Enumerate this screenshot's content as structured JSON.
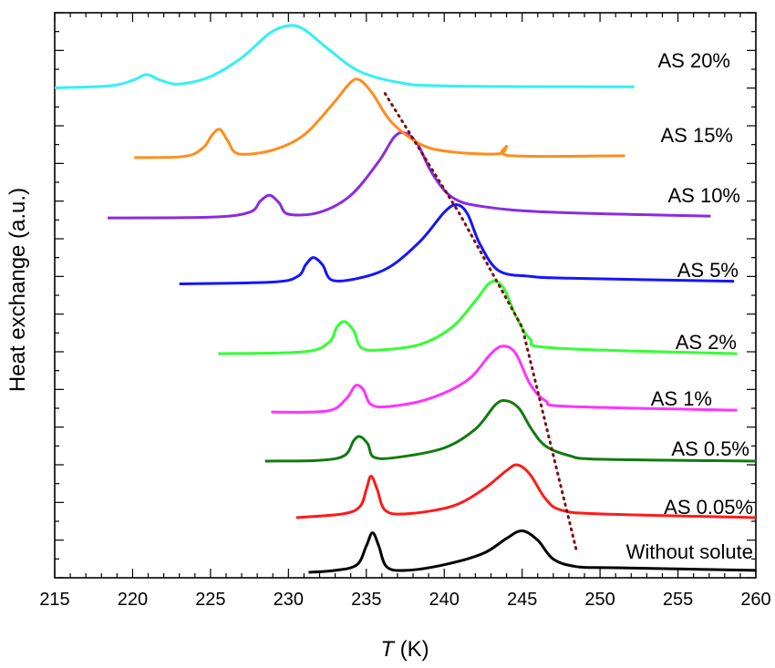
{
  "chart_data": {
    "type": "line",
    "xlabel_symbol": "T",
    "xlabel_unit": " (K)",
    "ylabel": "Heat exchange (a.u.)",
    "xlim": [
      215,
      260
    ],
    "x_ticks": [
      "215",
      "220",
      "225",
      "230",
      "235",
      "240",
      "245",
      "250",
      "255",
      "260"
    ],
    "grid": false,
    "y_ticks_labeled": false,
    "trend_line": {
      "style": "dotted",
      "color": "#7a1010",
      "points": [
        [
          236.2,
          12.7
        ],
        [
          241.0,
          9.5
        ],
        [
          245.0,
          6.5
        ],
        [
          248.5,
          0.55
        ]
      ]
    },
    "series": [
      {
        "name": "Without solute",
        "color": "#000000",
        "x_start": 231.3,
        "x_end": 260,
        "baseline": 0.0,
        "points": [
          [
            231.3,
            0.0
          ],
          [
            233.0,
            0.05
          ],
          [
            234.4,
            0.2
          ],
          [
            235.0,
            0.7
          ],
          [
            235.4,
            1.05
          ],
          [
            235.8,
            0.7
          ],
          [
            236.3,
            0.15
          ],
          [
            237.5,
            0.05
          ],
          [
            240.0,
            0.2
          ],
          [
            242.5,
            0.5
          ],
          [
            244.0,
            0.9
          ],
          [
            245.0,
            1.1
          ],
          [
            246.0,
            0.85
          ],
          [
            247.0,
            0.35
          ],
          [
            248.5,
            0.15
          ],
          [
            251.0,
            0.12
          ],
          [
            260.0,
            0.05
          ]
        ]
      },
      {
        "name": "AS 0.05%",
        "color": "#ff1a1a",
        "x_start": 230.5,
        "x_end": 260,
        "baseline": 1.45,
        "points": [
          [
            230.5,
            1.45
          ],
          [
            233.5,
            1.55
          ],
          [
            234.6,
            1.75
          ],
          [
            235.0,
            2.2
          ],
          [
            235.3,
            2.55
          ],
          [
            235.7,
            2.2
          ],
          [
            236.2,
            1.65
          ],
          [
            237.5,
            1.55
          ],
          [
            240.5,
            1.75
          ],
          [
            242.5,
            2.2
          ],
          [
            244.0,
            2.7
          ],
          [
            244.7,
            2.85
          ],
          [
            245.5,
            2.6
          ],
          [
            246.5,
            1.95
          ],
          [
            247.5,
            1.65
          ],
          [
            250.0,
            1.55
          ],
          [
            260.0,
            1.45
          ]
        ]
      },
      {
        "name": "AS 0.5%",
        "color": "#127a12",
        "x_start": 228.5,
        "x_end": 260,
        "baseline": 2.95,
        "points": [
          [
            228.5,
            2.95
          ],
          [
            232.0,
            2.97
          ],
          [
            233.6,
            3.1
          ],
          [
            234.2,
            3.5
          ],
          [
            234.6,
            3.6
          ],
          [
            235.1,
            3.4
          ],
          [
            235.5,
            3.05
          ],
          [
            237.0,
            3.05
          ],
          [
            240.0,
            3.3
          ],
          [
            242.0,
            3.8
          ],
          [
            243.3,
            4.45
          ],
          [
            244.0,
            4.55
          ],
          [
            244.8,
            4.35
          ],
          [
            245.6,
            3.8
          ],
          [
            246.5,
            3.35
          ],
          [
            248.0,
            3.1
          ],
          [
            250.0,
            3.0
          ],
          [
            260.0,
            2.95
          ]
        ]
      },
      {
        "name": "AS 1%",
        "color": "#ff33ff",
        "x_start": 228.9,
        "x_end": 258.8,
        "baseline": 4.25,
        "points": [
          [
            228.9,
            4.25
          ],
          [
            232.5,
            4.28
          ],
          [
            233.7,
            4.6
          ],
          [
            234.3,
            4.95
          ],
          [
            234.8,
            4.85
          ],
          [
            235.3,
            4.45
          ],
          [
            236.5,
            4.4
          ],
          [
            239.0,
            4.6
          ],
          [
            241.5,
            5.1
          ],
          [
            243.0,
            5.8
          ],
          [
            243.8,
            6.0
          ],
          [
            244.6,
            5.8
          ],
          [
            245.5,
            5.0
          ],
          [
            246.5,
            4.55
          ],
          [
            248.0,
            4.4
          ],
          [
            258.8,
            4.3
          ]
        ]
      },
      {
        "name": "AS 2%",
        "color": "#33ff33",
        "x_start": 225.5,
        "x_end": 258.8,
        "baseline": 5.8,
        "points": [
          [
            225.5,
            5.8
          ],
          [
            231.0,
            5.85
          ],
          [
            232.6,
            6.1
          ],
          [
            233.1,
            6.5
          ],
          [
            233.6,
            6.65
          ],
          [
            234.2,
            6.4
          ],
          [
            234.7,
            5.95
          ],
          [
            236.0,
            5.9
          ],
          [
            238.5,
            6.05
          ],
          [
            240.5,
            6.5
          ],
          [
            242.0,
            7.2
          ],
          [
            243.0,
            7.7
          ],
          [
            243.8,
            7.55
          ],
          [
            244.6,
            6.8
          ],
          [
            245.5,
            6.2
          ],
          [
            247.0,
            5.95
          ],
          [
            258.8,
            5.8
          ]
        ]
      },
      {
        "name": "AS 5%",
        "color": "#1515ff",
        "x_start": 223.0,
        "x_end": 258.6,
        "baseline": 7.65,
        "points": [
          [
            223.0,
            7.65
          ],
          [
            229.0,
            7.7
          ],
          [
            230.6,
            7.85
          ],
          [
            231.1,
            8.15
          ],
          [
            231.6,
            8.35
          ],
          [
            232.2,
            8.15
          ],
          [
            232.8,
            7.75
          ],
          [
            234.5,
            7.8
          ],
          [
            236.5,
            8.1
          ],
          [
            238.5,
            8.8
          ],
          [
            240.0,
            9.55
          ],
          [
            240.8,
            9.75
          ],
          [
            241.5,
            9.5
          ],
          [
            242.3,
            8.7
          ],
          [
            243.5,
            8.0
          ],
          [
            245.5,
            7.85
          ],
          [
            248.0,
            7.8
          ],
          [
            258.6,
            7.72
          ]
        ]
      },
      {
        "name": "AS 10%",
        "color": "#8a2be2",
        "x_start": 218.4,
        "x_end": 257.1,
        "baseline": 9.4,
        "points": [
          [
            218.4,
            9.4
          ],
          [
            225.0,
            9.42
          ],
          [
            227.5,
            9.55
          ],
          [
            228.2,
            9.85
          ],
          [
            228.8,
            10.0
          ],
          [
            229.4,
            9.8
          ],
          [
            230.0,
            9.5
          ],
          [
            232.0,
            9.55
          ],
          [
            234.0,
            10.0
          ],
          [
            235.8,
            10.9
          ],
          [
            236.8,
            11.55
          ],
          [
            237.5,
            11.65
          ],
          [
            238.3,
            11.35
          ],
          [
            239.2,
            10.6
          ],
          [
            240.5,
            9.95
          ],
          [
            242.5,
            9.7
          ],
          [
            247.0,
            9.55
          ],
          [
            257.1,
            9.45
          ]
        ]
      },
      {
        "name": "AS 15%",
        "color": "#ff8c1a",
        "x_start": 220.1,
        "x_end": 251.6,
        "baseline": 11.0,
        "points": [
          [
            220.1,
            11.0
          ],
          [
            223.3,
            11.03
          ],
          [
            224.5,
            11.25
          ],
          [
            225.1,
            11.6
          ],
          [
            225.6,
            11.75
          ],
          [
            226.1,
            11.45
          ],
          [
            226.8,
            11.1
          ],
          [
            229.0,
            11.2
          ],
          [
            231.0,
            11.6
          ],
          [
            232.8,
            12.4
          ],
          [
            234.0,
            13.0
          ],
          [
            234.6,
            13.05
          ],
          [
            235.4,
            12.7
          ],
          [
            236.6,
            11.95
          ],
          [
            238.5,
            11.35
          ],
          [
            240.5,
            11.15
          ],
          [
            243.5,
            11.1
          ],
          [
            244.0,
            11.3
          ],
          [
            244.3,
            11.05
          ],
          [
            251.6,
            11.05
          ]
        ]
      },
      {
        "name": "AS 20%",
        "color": "#33f0f5",
        "x_start": 215.0,
        "x_end": 252.2,
        "baseline": 12.85,
        "points": [
          [
            215.0,
            12.85
          ],
          [
            218.5,
            12.9
          ],
          [
            220.0,
            13.05
          ],
          [
            220.9,
            13.2
          ],
          [
            221.8,
            13.05
          ],
          [
            223.0,
            12.95
          ],
          [
            225.0,
            13.15
          ],
          [
            227.0,
            13.65
          ],
          [
            228.8,
            14.3
          ],
          [
            230.0,
            14.5
          ],
          [
            231.0,
            14.4
          ],
          [
            232.5,
            13.9
          ],
          [
            234.5,
            13.3
          ],
          [
            237.0,
            13.0
          ],
          [
            240.0,
            12.9
          ],
          [
            252.2,
            12.88
          ]
        ]
      }
    ],
    "label_positions_note": "labels drawn near right end of each curve"
  }
}
